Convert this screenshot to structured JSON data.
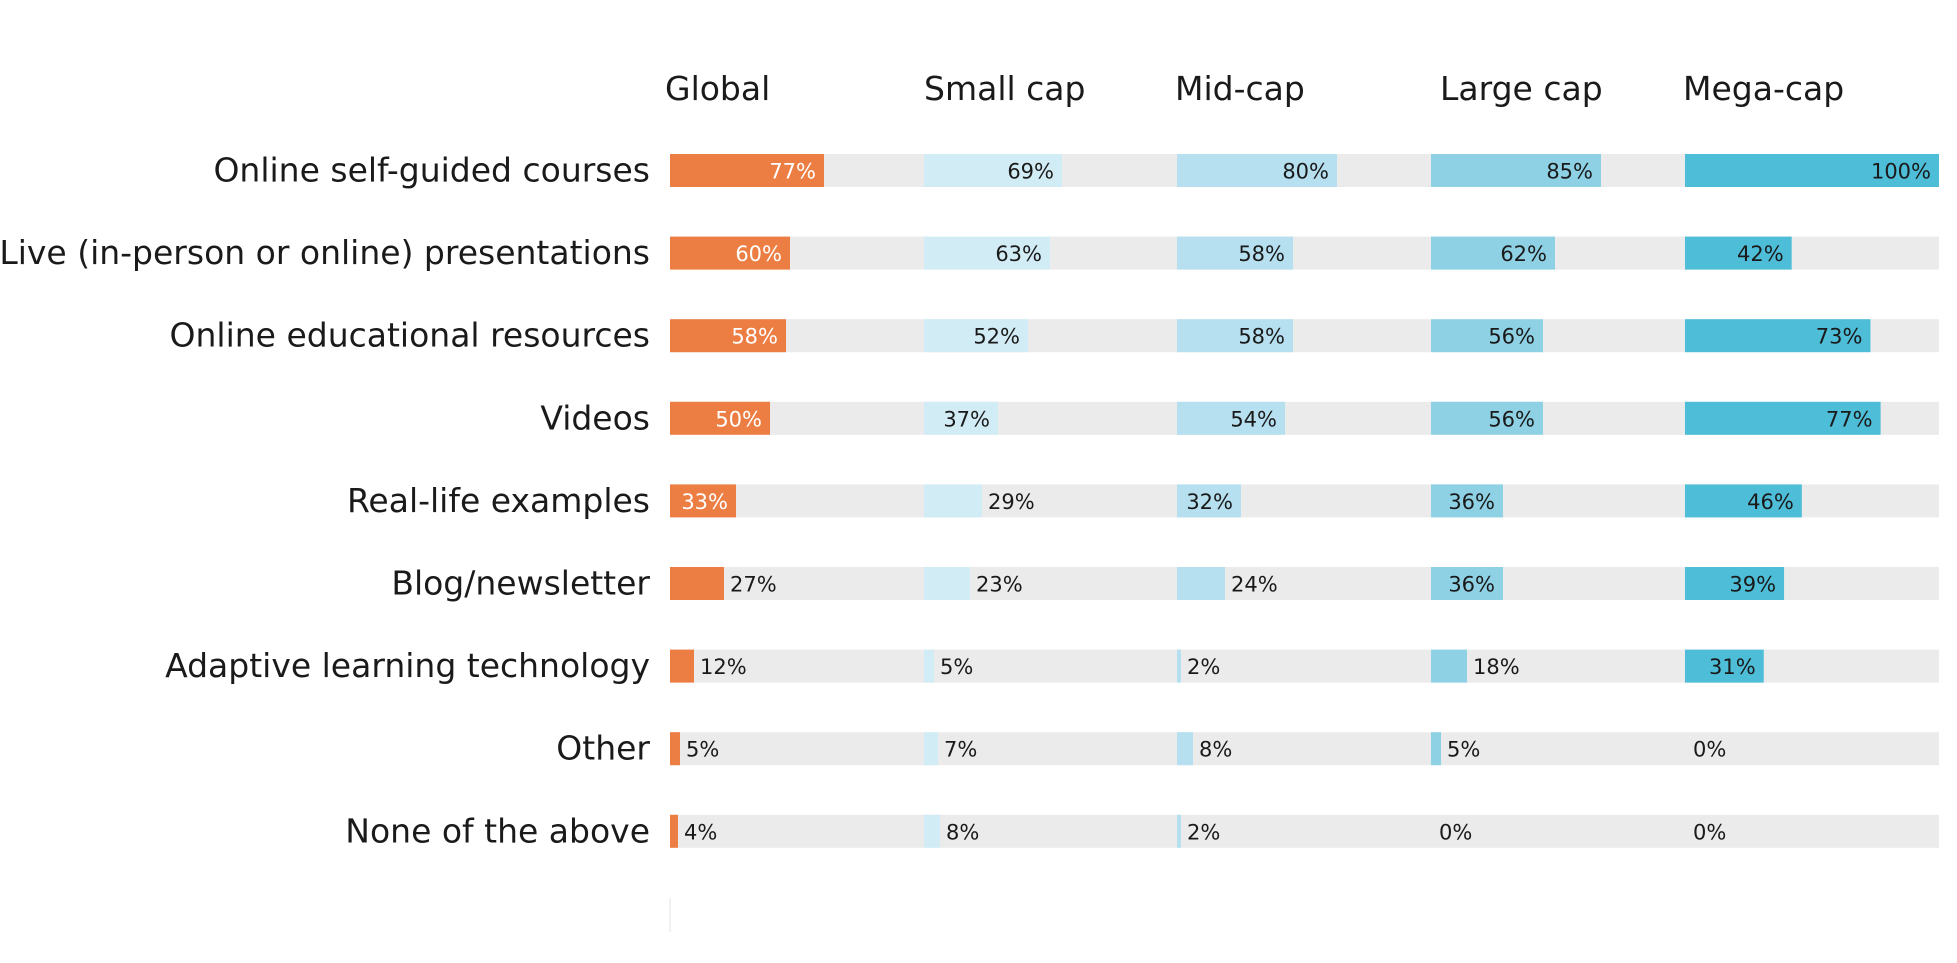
{
  "chart_data": {
    "type": "bar",
    "orientation": "horizontal",
    "layout": "small-multiples",
    "xlim": [
      0,
      100
    ],
    "value_format": "percent",
    "categories": [
      "Online self-guided courses",
      "Live (in-person or online) presentations",
      "Online educational resources",
      "Videos",
      "Real-life examples",
      "Blog/newsletter",
      "Adaptive learning technology",
      "Other",
      "None of the above"
    ],
    "series": [
      {
        "name": "Global",
        "color": "#ec7e43",
        "values": [
          77,
          60,
          58,
          50,
          33,
          27,
          12,
          5,
          4
        ]
      },
      {
        "name": "Small cap",
        "color": "#d2ecf5",
        "values": [
          69,
          63,
          52,
          37,
          29,
          23,
          5,
          7,
          8
        ]
      },
      {
        "name": "Mid-cap",
        "color": "#b6dfef",
        "values": [
          80,
          58,
          58,
          54,
          32,
          24,
          2,
          8,
          2
        ]
      },
      {
        "name": "Large cap",
        "color": "#8ed1e5",
        "values": [
          85,
          62,
          56,
          56,
          36,
          36,
          18,
          5,
          0
        ]
      },
      {
        "name": "Mega-cap",
        "color": "#4dbdd8",
        "values": [
          100,
          42,
          73,
          77,
          46,
          39,
          31,
          0,
          0
        ]
      }
    ],
    "track_color": "#ebebeb"
  }
}
